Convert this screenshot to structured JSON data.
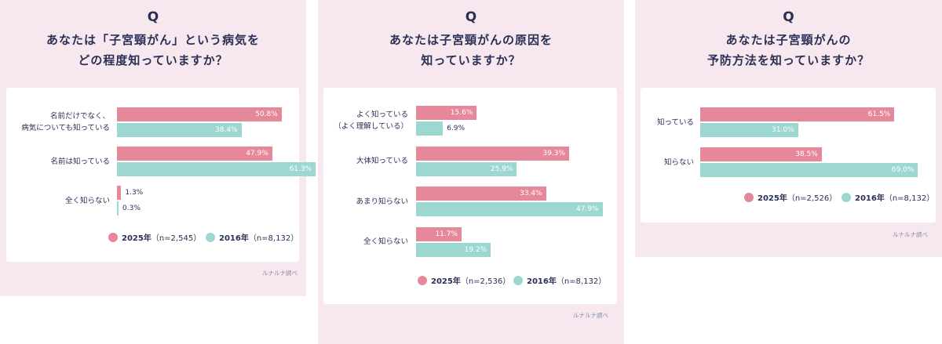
{
  "colors": {
    "s2025": "#e5889a",
    "s2016": "#9cd8d1",
    "panel_bg": "#f7e8ef",
    "text": "#2a2f55"
  },
  "chart_data": [
    {
      "type": "bar",
      "orientation": "horizontal",
      "question_mark": "Q",
      "title_lines": [
        "あなたは「子宮頸がん」という病気を",
        "どの程度知っていますか？"
      ],
      "categories": [
        [
          "名前だけでなく、",
          "病気についても知っている"
        ],
        [
          "名前は知っている"
        ],
        [
          "全く知らない"
        ]
      ],
      "series": [
        {
          "name": "2025年（n=2,545）",
          "year": "2025年",
          "n": "（n=2,545）",
          "key": "s2025",
          "values": [
            50.8,
            47.9,
            1.3
          ],
          "labels": [
            "50.8%",
            "47.9%",
            "1.3%"
          ]
        },
        {
          "name": "2016年（n=8,132）",
          "year": "2016年",
          "n": "（n=8,132）",
          "key": "s2016",
          "values": [
            38.4,
            61.3,
            0.3
          ],
          "labels": [
            "38.4%",
            "61.3%",
            "0.3%"
          ]
        }
      ],
      "xlim": [
        0,
        100
      ],
      "legend": "bottom",
      "source": "ルナルナ調べ"
    },
    {
      "type": "bar",
      "orientation": "horizontal",
      "question_mark": "Q",
      "title_lines": [
        "あなたは子宮頸がんの原因を",
        "知っていますか？"
      ],
      "categories": [
        [
          "よく知っている",
          "（よく理解している）"
        ],
        [
          "大体知っている"
        ],
        [
          "あまり知らない"
        ],
        [
          "全く知らない"
        ]
      ],
      "series": [
        {
          "name": "2025年（n=2,536）",
          "year": "2025年",
          "n": "（n=2,536）",
          "key": "s2025",
          "values": [
            15.6,
            39.3,
            33.4,
            11.7
          ],
          "labels": [
            "15.6%",
            "39.3%",
            "33.4%",
            "11.7%"
          ]
        },
        {
          "name": "2016年（n=8,132）",
          "year": "2016年",
          "n": "（n=8,132）",
          "key": "s2016",
          "values": [
            6.9,
            25.9,
            47.9,
            19.2
          ],
          "labels": [
            "6.9%",
            "25.9%",
            "47.9%",
            "19.2%"
          ]
        }
      ],
      "xlim": [
        0,
        100
      ],
      "legend": "bottom",
      "source": "ルナルナ調べ"
    },
    {
      "type": "bar",
      "orientation": "horizontal",
      "question_mark": "Q",
      "title_lines": [
        "あなたは子宮頸がんの",
        "予防方法を知っていますか？"
      ],
      "categories": [
        [
          "知っている"
        ],
        [
          "知らない"
        ]
      ],
      "series": [
        {
          "name": "2025年（n=2,526）",
          "year": "2025年",
          "n": "（n=2,526）",
          "key": "s2025",
          "values": [
            61.5,
            38.5
          ],
          "labels": [
            "61.5%",
            "38.5%"
          ]
        },
        {
          "name": "2016年（n=8,132）",
          "year": "2016年",
          "n": "（n=8,132）",
          "key": "s2016",
          "values": [
            31.0,
            69.0
          ],
          "labels": [
            "31.0%",
            "69.0%"
          ]
        }
      ],
      "xlim": [
        0,
        100
      ],
      "legend": "bottom",
      "source": "ルナルナ調べ"
    }
  ]
}
